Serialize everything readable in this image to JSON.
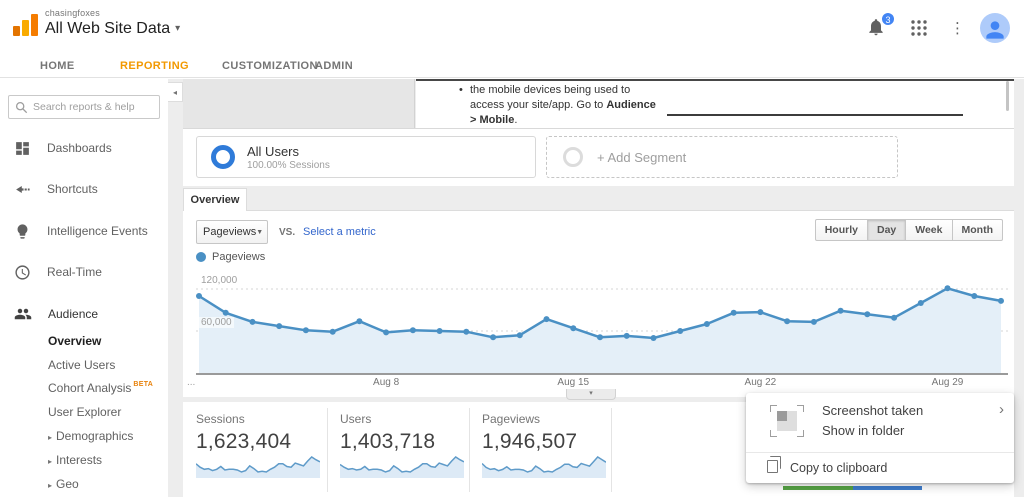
{
  "header": {
    "account": "chasingfoxes",
    "property": "All Web Site Data",
    "dropdown_caret": "▾",
    "notification_count": "3"
  },
  "nav": {
    "items": [
      {
        "label": "HOME",
        "active": false
      },
      {
        "label": "REPORTING",
        "active": true
      },
      {
        "label": "CUSTOMIZATION",
        "active": false
      },
      {
        "label": "ADMIN",
        "active": false
      }
    ]
  },
  "sidebar": {
    "search_placeholder": "Search reports & help",
    "items": [
      {
        "label": "Dashboards"
      },
      {
        "label": "Shortcuts"
      },
      {
        "label": "Intelligence Events"
      },
      {
        "label": "Real-Time"
      },
      {
        "label": "Audience"
      }
    ],
    "audience_children": [
      {
        "label": "Overview",
        "active": true
      },
      {
        "label": "Active Users"
      },
      {
        "label": "Cohort Analysis",
        "badge": "BETA"
      },
      {
        "label": "User Explorer"
      },
      {
        "label": "Demographics",
        "caret": "▸"
      },
      {
        "label": "Interests",
        "caret": "▸"
      },
      {
        "label": "Geo",
        "caret": "▸"
      }
    ]
  },
  "onboarding_note": {
    "bullet": "•",
    "line1": "the mobile devices being used to",
    "line2": "access your site/app. Go to ",
    "line2_bold": "Audience",
    "line3_bold": "> Mobile",
    "line3_end": "."
  },
  "segments": {
    "all_users_title": "All Users",
    "all_users_subtitle": "100.00% Sessions",
    "add_segment_label": "+ Add Segment"
  },
  "report_tab": {
    "label": "Overview"
  },
  "toolbar": {
    "metric_selected": "Pageviews",
    "caret": "▼",
    "vs_label": "VS.",
    "compare_link": "Select a metric",
    "granularity": [
      {
        "label": "Hourly",
        "active": false
      },
      {
        "label": "Day",
        "active": true
      },
      {
        "label": "Week",
        "active": false
      },
      {
        "label": "Month",
        "active": false
      }
    ]
  },
  "chart_data": {
    "type": "line",
    "legend": "Pageviews",
    "series_color": "#4a90c4",
    "x_unit": "day",
    "x_range": "Aug 1 - Aug 31",
    "values": [
      110000,
      86000,
      73000,
      67000,
      61000,
      59000,
      74000,
      58000,
      61000,
      60000,
      59000,
      51000,
      54000,
      77000,
      64000,
      51000,
      53000,
      50000,
      60000,
      70000,
      86000,
      87000,
      74000,
      73000,
      89000,
      84000,
      79000,
      100000,
      121000,
      110000,
      103000
    ],
    "ylim": [
      0,
      148000
    ],
    "yticks": [
      {
        "value": 60000,
        "label": "60,000"
      },
      {
        "value": 120000,
        "label": "120,000"
      }
    ],
    "xticks": [
      {
        "day": 8,
        "label": "Aug 8"
      },
      {
        "day": 15,
        "label": "Aug 15"
      },
      {
        "day": 22,
        "label": "Aug 22"
      },
      {
        "day": 29,
        "label": "Aug 29"
      }
    ],
    "grid": "dashed-horizontal",
    "left_ellipsis": "...",
    "collapse_caret": "▾"
  },
  "metrics": [
    {
      "label": "Sessions",
      "value": "1,623,404",
      "spark": [
        60,
        55,
        52,
        53,
        50,
        52,
        56,
        51,
        52,
        52,
        51,
        48,
        50,
        57,
        53,
        48,
        49,
        48,
        52,
        55,
        60,
        60,
        56,
        55,
        61,
        59,
        57,
        64,
        70,
        66,
        63
      ]
    },
    {
      "label": "Users",
      "value": "1,403,718",
      "spark": [
        58,
        54,
        51,
        52,
        50,
        51,
        55,
        50,
        51,
        51,
        50,
        47,
        49,
        56,
        52,
        47,
        48,
        47,
        51,
        54,
        59,
        59,
        55,
        54,
        60,
        58,
        56,
        63,
        69,
        65,
        62
      ]
    },
    {
      "label": "Pageviews",
      "value": "1,946,507",
      "spark": [
        62,
        56,
        53,
        54,
        51,
        53,
        57,
        52,
        53,
        53,
        52,
        49,
        51,
        58,
        54,
        49,
        50,
        49,
        53,
        56,
        61,
        61,
        57,
        56,
        62,
        60,
        58,
        65,
        72,
        68,
        64
      ]
    }
  ],
  "popup": {
    "title": "Screenshot taken",
    "subtitle": "Show in folder",
    "chevron": "›",
    "action": "Copy to clipboard"
  }
}
